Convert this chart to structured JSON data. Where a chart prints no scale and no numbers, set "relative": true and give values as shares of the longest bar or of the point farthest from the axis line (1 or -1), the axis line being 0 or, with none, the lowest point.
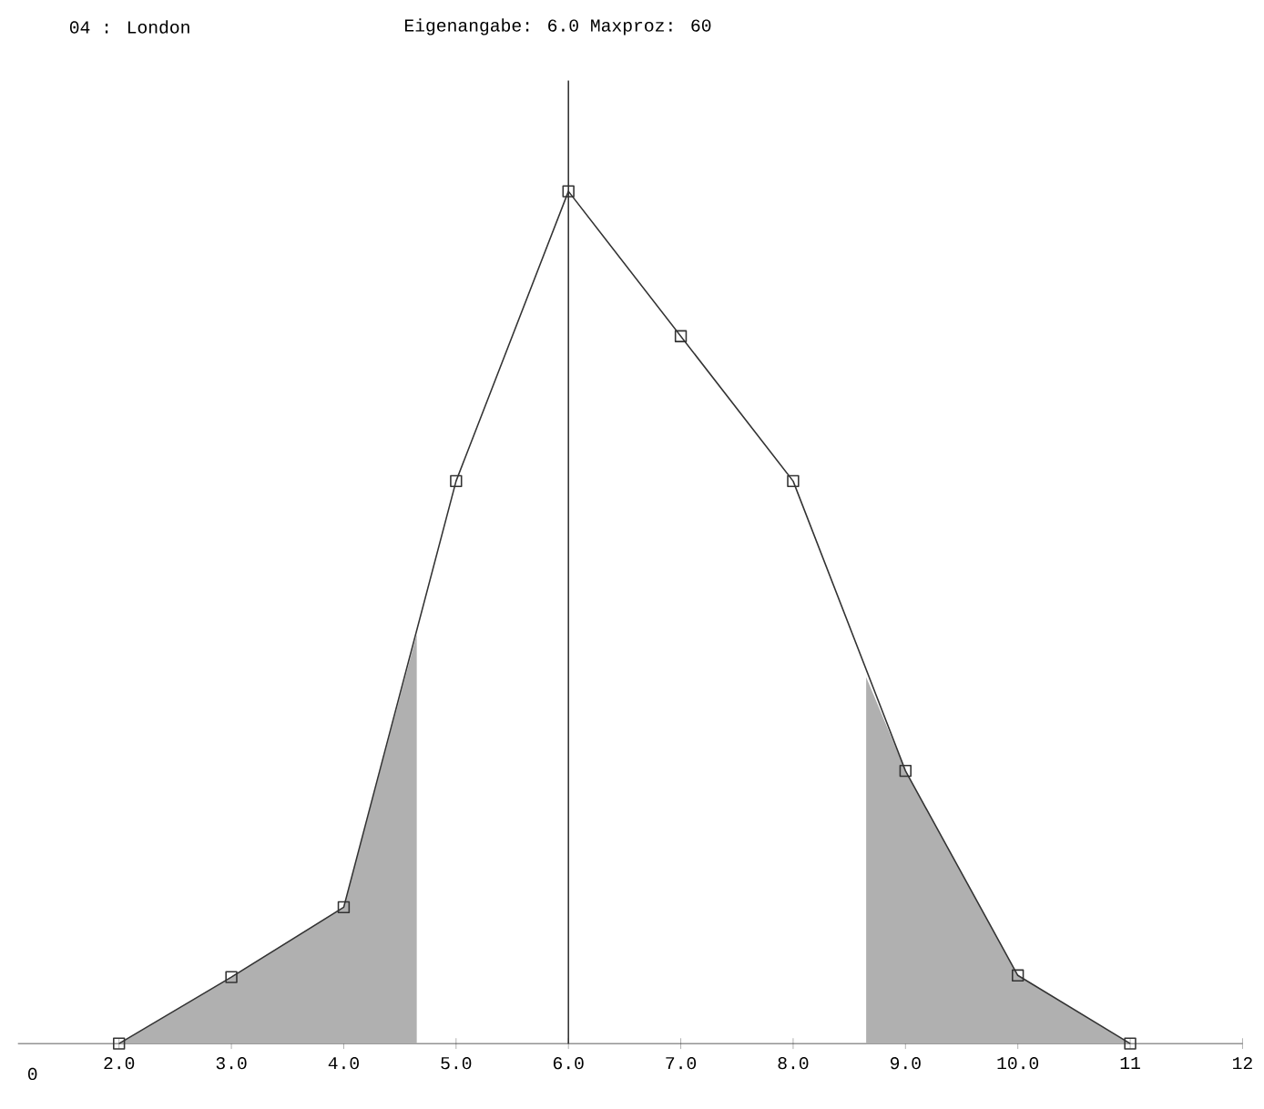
{
  "chart_data": {
    "type": "line",
    "title": "04 :  London",
    "subtitle": "Eigenangabe: 6.0  Maxproz: 60",
    "x": [
      2,
      3,
      4,
      5,
      6,
      7,
      8,
      9,
      10,
      11
    ],
    "series": [
      {
        "type": "area",
        "marker": "none",
        "color": "#b0b0b0",
        "x": [
          2,
          3,
          4,
          4.65
        ],
        "values": [
          0,
          0.078,
          0.16,
          0.48
        ]
      },
      {
        "type": "area",
        "marker": "none",
        "color": "#b0b0b0",
        "x": [
          8.65,
          9,
          10,
          11
        ],
        "values": [
          0.43,
          0.32,
          0.08,
          0
        ]
      },
      {
        "color": "#333333",
        "values": [
          0,
          0.078,
          0.16,
          0.66,
          1,
          0.83,
          0.66,
          0.32,
          0.08,
          0
        ]
      }
    ],
    "relative": true,
    "marker": "square",
    "line_style": "solid",
    "xlim": [
      1.1,
      12.0
    ],
    "xticks": [
      {
        "value": 2,
        "label": "2.0"
      },
      {
        "value": 3,
        "label": "3.0"
      },
      {
        "value": 4,
        "label": "4.0"
      },
      {
        "value": 5,
        "label": "5.0"
      },
      {
        "value": 6,
        "label": "6.0"
      },
      {
        "value": 7,
        "label": "7.0"
      },
      {
        "value": 8,
        "label": "8.0"
      },
      {
        "value": 9,
        "label": "9.0"
      },
      {
        "value": 10,
        "label": "10.0"
      },
      11,
      12
    ],
    "ref_lines": [
      {
        "axis": "x",
        "value": 6,
        "color": "#333333"
      }
    ],
    "annotations": [
      "0"
    ]
  }
}
